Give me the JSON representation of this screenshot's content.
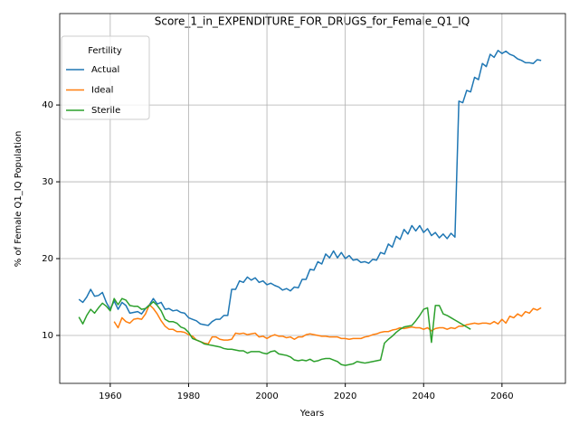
{
  "chart_data": {
    "type": "line",
    "title": "Score_1_in_EXPENDITURE_FOR_DRUGS_for_Female_Q1_IQ",
    "x_label": "Years",
    "y_label": "% of Female Q1_IQ Population",
    "legend_title": "Fertility",
    "legend_position": "upper left",
    "grid": true,
    "xlim": [
      1947.1,
      2076.2
    ],
    "ylim": [
      3.76,
      51.9
    ],
    "xticks": [
      1960,
      1980,
      2000,
      2020,
      2040,
      2060
    ],
    "yticks": [
      10,
      20,
      30,
      40
    ],
    "x": [
      1952,
      1953,
      1954,
      1955,
      1956,
      1957,
      1958,
      1959,
      1960,
      1961,
      1962,
      1963,
      1964,
      1965,
      1966,
      1967,
      1968,
      1969,
      1970,
      1971,
      1972,
      1973,
      1974,
      1975,
      1976,
      1977,
      1978,
      1979,
      1980,
      1981,
      1982,
      1983,
      1984,
      1985,
      1986,
      1987,
      1988,
      1989,
      1990,
      1991,
      1992,
      1993,
      1994,
      1995,
      1996,
      1997,
      1998,
      1999,
      2000,
      2001,
      2002,
      2003,
      2004,
      2005,
      2006,
      2007,
      2008,
      2009,
      2010,
      2011,
      2012,
      2013,
      2014,
      2015,
      2016,
      2017,
      2018,
      2019,
      2020,
      2021,
      2022,
      2023,
      2024,
      2025,
      2026,
      2027,
      2028,
      2029,
      2030,
      2031,
      2032,
      2033,
      2034,
      2035,
      2036,
      2037,
      2038,
      2039,
      2040,
      2041,
      2042,
      2043,
      2044,
      2045,
      2046,
      2047,
      2048,
      2049,
      2050,
      2051,
      2052,
      2053,
      2054,
      2055,
      2056,
      2057,
      2058,
      2059,
      2060,
      2061,
      2062,
      2063,
      2064,
      2065,
      2066,
      2067,
      2068,
      2069,
      2070
    ],
    "series": [
      {
        "name": "Actual",
        "color": "#1f77b4",
        "values": [
          14.7,
          14.3,
          15.0,
          16.0,
          15.1,
          15.2,
          15.6,
          14.3,
          13.4,
          14.5,
          13.4,
          14.3,
          13.9,
          12.9,
          13.0,
          13.1,
          12.8,
          13.5,
          14.0,
          14.8,
          14.1,
          14.3,
          13.4,
          13.5,
          13.2,
          13.3,
          13.0,
          12.9,
          12.3,
          12.1,
          11.9,
          11.5,
          11.4,
          11.3,
          11.8,
          12.1,
          12.1,
          12.6,
          12.6,
          16.0,
          16.0,
          17.1,
          16.9,
          17.6,
          17.2,
          17.5,
          16.9,
          17.1,
          16.6,
          16.8,
          16.5,
          16.3,
          15.9,
          16.1,
          15.8,
          16.3,
          16.2,
          17.3,
          17.3,
          18.6,
          18.5,
          19.6,
          19.3,
          20.6,
          20.1,
          21.0,
          20.1,
          20.8,
          20.0,
          20.4,
          19.8,
          19.9,
          19.5,
          19.6,
          19.4,
          19.9,
          19.8,
          20.8,
          20.6,
          21.9,
          21.5,
          22.9,
          22.5,
          23.8,
          23.2,
          24.3,
          23.6,
          24.3,
          23.4,
          23.9,
          23.0,
          23.4,
          22.7,
          23.2,
          22.6,
          23.3,
          22.8,
          40.5,
          40.3,
          41.9,
          41.7,
          43.6,
          43.3,
          45.4,
          45.0,
          46.6,
          46.2,
          47.1,
          46.7,
          47.0,
          46.6,
          46.4,
          46.0,
          45.8,
          45.5,
          45.5,
          45.4,
          45.9,
          45.8
        ]
      },
      {
        "name": "Ideal",
        "color": "#ff7f0e",
        "values": [
          null,
          null,
          null,
          null,
          null,
          null,
          null,
          null,
          null,
          11.8,
          11.0,
          12.3,
          11.8,
          11.6,
          12.1,
          12.2,
          12.1,
          12.8,
          14.0,
          13.5,
          12.8,
          11.9,
          11.2,
          10.8,
          10.8,
          10.5,
          10.5,
          10.4,
          10.1,
          9.9,
          9.4,
          9.2,
          9.0,
          8.9,
          9.8,
          9.8,
          9.5,
          9.4,
          9.4,
          9.5,
          10.3,
          10.2,
          10.3,
          10.1,
          10.2,
          10.3,
          9.8,
          9.9,
          9.6,
          9.9,
          10.1,
          9.9,
          9.9,
          9.7,
          9.8,
          9.5,
          9.8,
          9.8,
          10.1,
          10.2,
          10.1,
          10.0,
          9.9,
          9.9,
          9.8,
          9.8,
          9.8,
          9.6,
          9.6,
          9.5,
          9.6,
          9.6,
          9.6,
          9.8,
          9.9,
          10.1,
          10.2,
          10.4,
          10.5,
          10.5,
          10.7,
          10.8,
          11.0,
          10.9,
          11.0,
          11.1,
          11.0,
          11.0,
          10.8,
          11.0,
          10.6,
          10.9,
          11.0,
          11.0,
          10.8,
          11.0,
          10.9,
          11.2,
          11.2,
          11.4,
          11.5,
          11.6,
          11.5,
          11.6,
          11.6,
          11.5,
          11.8,
          11.5,
          12.1,
          11.6,
          12.5,
          12.3,
          12.8,
          12.5,
          13.1,
          12.9,
          13.5,
          13.3,
          13.6
        ]
      },
      {
        "name": "Sterile",
        "color": "#2ca02c",
        "values": [
          12.4,
          11.5,
          12.6,
          13.4,
          12.9,
          13.6,
          14.2,
          13.8,
          13.2,
          14.8,
          14.0,
          14.8,
          14.6,
          13.9,
          13.8,
          13.8,
          13.4,
          13.5,
          13.9,
          14.4,
          13.9,
          13.2,
          12.1,
          11.8,
          11.8,
          11.6,
          11.1,
          10.9,
          10.4,
          9.6,
          9.4,
          9.2,
          8.9,
          8.8,
          8.7,
          8.6,
          8.5,
          8.3,
          8.2,
          8.2,
          8.1,
          8.0,
          8.0,
          7.7,
          7.9,
          7.9,
          7.9,
          7.7,
          7.6,
          7.9,
          8.0,
          7.6,
          7.5,
          7.4,
          7.2,
          6.8,
          6.7,
          6.8,
          6.7,
          6.9,
          6.6,
          6.7,
          6.9,
          7.0,
          7.0,
          6.8,
          6.6,
          6.2,
          6.1,
          6.2,
          6.3,
          6.6,
          6.5,
          6.4,
          6.5,
          6.6,
          6.7,
          6.8,
          9.0,
          9.5,
          9.9,
          10.4,
          10.8,
          11.1,
          11.2,
          11.3,
          11.9,
          12.6,
          13.4,
          13.6,
          9.1,
          13.9,
          13.9,
          12.8,
          12.6,
          12.3,
          12.0,
          11.7,
          11.4,
          11.1,
          10.8,
          null,
          null,
          null,
          null,
          null,
          null,
          null,
          null,
          null,
          null,
          null,
          null,
          null,
          null,
          null,
          null,
          null,
          null
        ]
      }
    ]
  }
}
